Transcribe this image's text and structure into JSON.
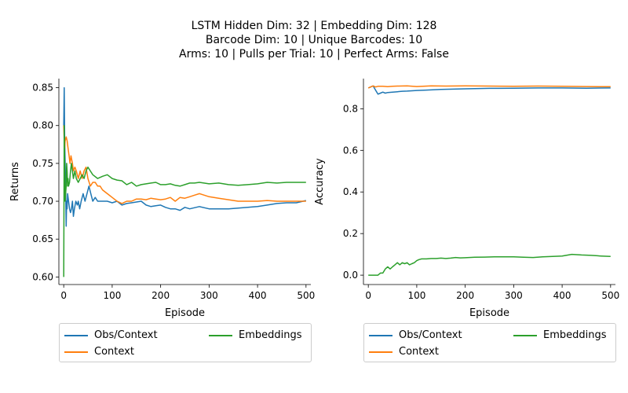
{
  "figure": {
    "title_lines": [
      "LSTM Hidden Dim: 32 | Embedding Dim: 128",
      "Barcode Dim: 10 | Unique Barcodes: 10",
      "Arms: 10 | Pulls per Trial: 10 | Perfect Arms: False"
    ]
  },
  "chart_data": [
    {
      "type": "line",
      "xlabel": "Episode",
      "ylabel": "Returns",
      "xlim": [
        -10,
        510
      ],
      "ylim": [
        0.59,
        0.862
      ],
      "xticks": [
        0,
        100,
        200,
        300,
        400,
        500
      ],
      "yticks": [
        0.6,
        0.65,
        0.7,
        0.75,
        0.8,
        0.85
      ],
      "ytick_labels": [
        "0.60",
        "0.65",
        "0.70",
        "0.75",
        "0.80",
        "0.85"
      ],
      "grid": false,
      "legend_position": "bottom",
      "series": [
        {
          "name": "Obs/Context",
          "color": "#1f77b4",
          "x": [
            0,
            1,
            2,
            3,
            4,
            5,
            6,
            7,
            8,
            10,
            12,
            14,
            16,
            18,
            20,
            22,
            25,
            28,
            30,
            33,
            36,
            40,
            44,
            48,
            52,
            56,
            60,
            65,
            70,
            75,
            80,
            90,
            100,
            110,
            120,
            130,
            140,
            150,
            160,
            170,
            180,
            190,
            200,
            210,
            220,
            230,
            240,
            250,
            260,
            280,
            300,
            320,
            340,
            360,
            380,
            400,
            420,
            440,
            460,
            480,
            500
          ],
          "y": [
            0.8,
            0.85,
            0.78,
            0.75,
            0.72,
            0.667,
            0.7,
            0.69,
            0.71,
            0.7,
            0.69,
            0.685,
            0.69,
            0.7,
            0.68,
            0.69,
            0.7,
            0.695,
            0.7,
            0.69,
            0.7,
            0.71,
            0.7,
            0.71,
            0.72,
            0.71,
            0.7,
            0.705,
            0.7,
            0.7,
            0.7,
            0.7,
            0.698,
            0.7,
            0.695,
            0.697,
            0.698,
            0.699,
            0.7,
            0.695,
            0.693,
            0.694,
            0.695,
            0.692,
            0.69,
            0.69,
            0.688,
            0.692,
            0.69,
            0.693,
            0.69,
            0.69,
            0.69,
            0.691,
            0.692,
            0.693,
            0.695,
            0.697,
            0.698,
            0.698,
            0.701
          ]
        },
        {
          "name": "Context",
          "color": "#ff7f0e",
          "x": [
            0,
            1,
            2,
            3,
            5,
            7,
            9,
            11,
            13,
            15,
            18,
            20,
            23,
            26,
            30,
            34,
            38,
            42,
            46,
            50,
            55,
            60,
            65,
            70,
            75,
            80,
            90,
            100,
            110,
            120,
            130,
            140,
            150,
            160,
            170,
            180,
            190,
            200,
            210,
            220,
            230,
            240,
            250,
            260,
            270,
            280,
            290,
            300,
            320,
            340,
            360,
            380,
            400,
            420,
            440,
            460,
            480,
            500
          ],
          "y": [
            0.8,
            0.78,
            0.77,
            0.78,
            0.785,
            0.78,
            0.77,
            0.76,
            0.75,
            0.76,
            0.75,
            0.74,
            0.745,
            0.74,
            0.73,
            0.74,
            0.73,
            0.74,
            0.745,
            0.73,
            0.72,
            0.725,
            0.725,
            0.72,
            0.72,
            0.715,
            0.71,
            0.705,
            0.7,
            0.697,
            0.7,
            0.7,
            0.703,
            0.703,
            0.702,
            0.704,
            0.703,
            0.702,
            0.703,
            0.705,
            0.7,
            0.705,
            0.704,
            0.706,
            0.708,
            0.71,
            0.708,
            0.706,
            0.704,
            0.702,
            0.7,
            0.7,
            0.7,
            0.701,
            0.7,
            0.7,
            0.7,
            0.7
          ]
        },
        {
          "name": "Embeddings",
          "color": "#2ca02c",
          "x": [
            0,
            1,
            2,
            3,
            4,
            5,
            6,
            7,
            8,
            9,
            10,
            12,
            14,
            16,
            18,
            20,
            23,
            26,
            30,
            34,
            38,
            42,
            46,
            50,
            55,
            60,
            70,
            80,
            90,
            100,
            110,
            120,
            130,
            140,
            150,
            160,
            170,
            180,
            190,
            200,
            210,
            220,
            230,
            240,
            250,
            260,
            270,
            280,
            300,
            320,
            340,
            360,
            380,
            400,
            420,
            440,
            460,
            480,
            500
          ],
          "y": [
            0.6,
            0.8,
            0.75,
            0.7,
            0.71,
            0.72,
            0.75,
            0.74,
            0.72,
            0.73,
            0.72,
            0.725,
            0.74,
            0.75,
            0.74,
            0.73,
            0.74,
            0.73,
            0.725,
            0.73,
            0.735,
            0.73,
            0.74,
            0.745,
            0.74,
            0.735,
            0.73,
            0.733,
            0.735,
            0.73,
            0.728,
            0.727,
            0.722,
            0.725,
            0.72,
            0.722,
            0.723,
            0.724,
            0.725,
            0.722,
            0.722,
            0.723,
            0.721,
            0.72,
            0.722,
            0.724,
            0.724,
            0.725,
            0.723,
            0.724,
            0.722,
            0.721,
            0.722,
            0.723,
            0.725,
            0.724,
            0.725,
            0.725,
            0.725
          ]
        }
      ]
    },
    {
      "type": "line",
      "xlabel": "Episode",
      "ylabel": "Accuracy",
      "xlim": [
        -10,
        510
      ],
      "ylim": [
        -0.045,
        0.945
      ],
      "xticks": [
        0,
        100,
        200,
        300,
        400,
        500
      ],
      "yticks": [
        0.0,
        0.2,
        0.4,
        0.6,
        0.8
      ],
      "ytick_labels": [
        "0.0",
        "0.2",
        "0.4",
        "0.6",
        "0.8"
      ],
      "grid": false,
      "legend_position": "bottom",
      "series": [
        {
          "name": "Obs/Context",
          "color": "#1f77b4",
          "x": [
            0,
            5,
            10,
            15,
            20,
            25,
            30,
            35,
            40,
            50,
            60,
            70,
            80,
            100,
            120,
            150,
            200,
            250,
            300,
            350,
            400,
            450,
            500
          ],
          "y": [
            0.9,
            0.905,
            0.91,
            0.89,
            0.87,
            0.875,
            0.88,
            0.875,
            0.878,
            0.88,
            0.882,
            0.884,
            0.885,
            0.888,
            0.89,
            0.893,
            0.896,
            0.898,
            0.899,
            0.9,
            0.9,
            0.899,
            0.9
          ]
        },
        {
          "name": "Context",
          "color": "#ff7f0e",
          "x": [
            0,
            5,
            10,
            15,
            20,
            30,
            40,
            50,
            60,
            80,
            100,
            130,
            160,
            200,
            250,
            300,
            350,
            400,
            450,
            500
          ],
          "y": [
            0.9,
            0.905,
            0.91,
            0.905,
            0.908,
            0.908,
            0.906,
            0.908,
            0.909,
            0.91,
            0.907,
            0.91,
            0.909,
            0.91,
            0.909,
            0.908,
            0.909,
            0.908,
            0.907,
            0.906
          ]
        },
        {
          "name": "Embeddings",
          "color": "#2ca02c",
          "x": [
            0,
            10,
            20,
            25,
            30,
            35,
            40,
            45,
            50,
            55,
            60,
            65,
            70,
            75,
            80,
            85,
            90,
            95,
            100,
            105,
            110,
            120,
            130,
            140,
            150,
            160,
            170,
            180,
            190,
            200,
            220,
            240,
            260,
            280,
            300,
            320,
            340,
            360,
            380,
            400,
            420,
            440,
            460,
            480,
            500
          ],
          "y": [
            0.0,
            0.0,
            0.0,
            0.01,
            0.01,
            0.03,
            0.04,
            0.03,
            0.04,
            0.05,
            0.06,
            0.05,
            0.06,
            0.055,
            0.06,
            0.05,
            0.055,
            0.06,
            0.07,
            0.075,
            0.078,
            0.078,
            0.08,
            0.08,
            0.082,
            0.08,
            0.082,
            0.085,
            0.083,
            0.084,
            0.086,
            0.087,
            0.088,
            0.088,
            0.088,
            0.086,
            0.085,
            0.088,
            0.09,
            0.092,
            0.1,
            0.097,
            0.095,
            0.092,
            0.09
          ]
        }
      ]
    }
  ]
}
